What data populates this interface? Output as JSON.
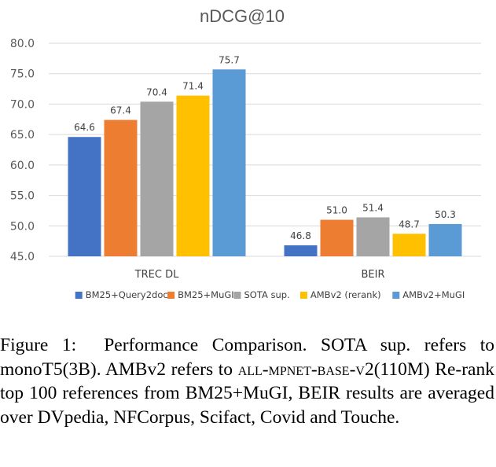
{
  "chart_data": {
    "type": "bar",
    "title": "nDCG@10",
    "categories": [
      "TREC DL",
      "BEIR"
    ],
    "series": [
      {
        "name": "BM25+Query2doc",
        "color": "#4472C4",
        "values": [
          64.6,
          46.8
        ]
      },
      {
        "name": "BM25+MuGI",
        "color": "#ED7D31",
        "values": [
          67.4,
          51.0
        ]
      },
      {
        "name": "SOTA sup.",
        "color": "#A5A5A5",
        "values": [
          70.4,
          51.4
        ]
      },
      {
        "name": "AMBv2 (rerank)",
        "color": "#FFC000",
        "values": [
          71.4,
          48.7
        ]
      },
      {
        "name": "AMBv2+MuGI",
        "color": "#5B9BD5",
        "values": [
          75.7,
          50.3
        ]
      }
    ],
    "ylim": [
      45.0,
      80.0
    ],
    "yticks": [
      "45.0",
      "50.0",
      "55.0",
      "60.0",
      "65.0",
      "70.0",
      "75.0",
      "80.0"
    ],
    "grid": true,
    "legend_position": "bottom",
    "xlabel": "",
    "ylabel": ""
  },
  "caption": {
    "label": "Figure 1:",
    "part1": "Performance Comparison. SOTA sup. refers to monoT5(3B). AMBv2 refers to ",
    "smallcaps": "all-mpnet-base-v2",
    "part2": "(110M) Re-rank top 100 references from BM25+MuGI, BEIR results are averaged over DVpedia, NFCorpus, Scifact, Covid and Touche."
  }
}
